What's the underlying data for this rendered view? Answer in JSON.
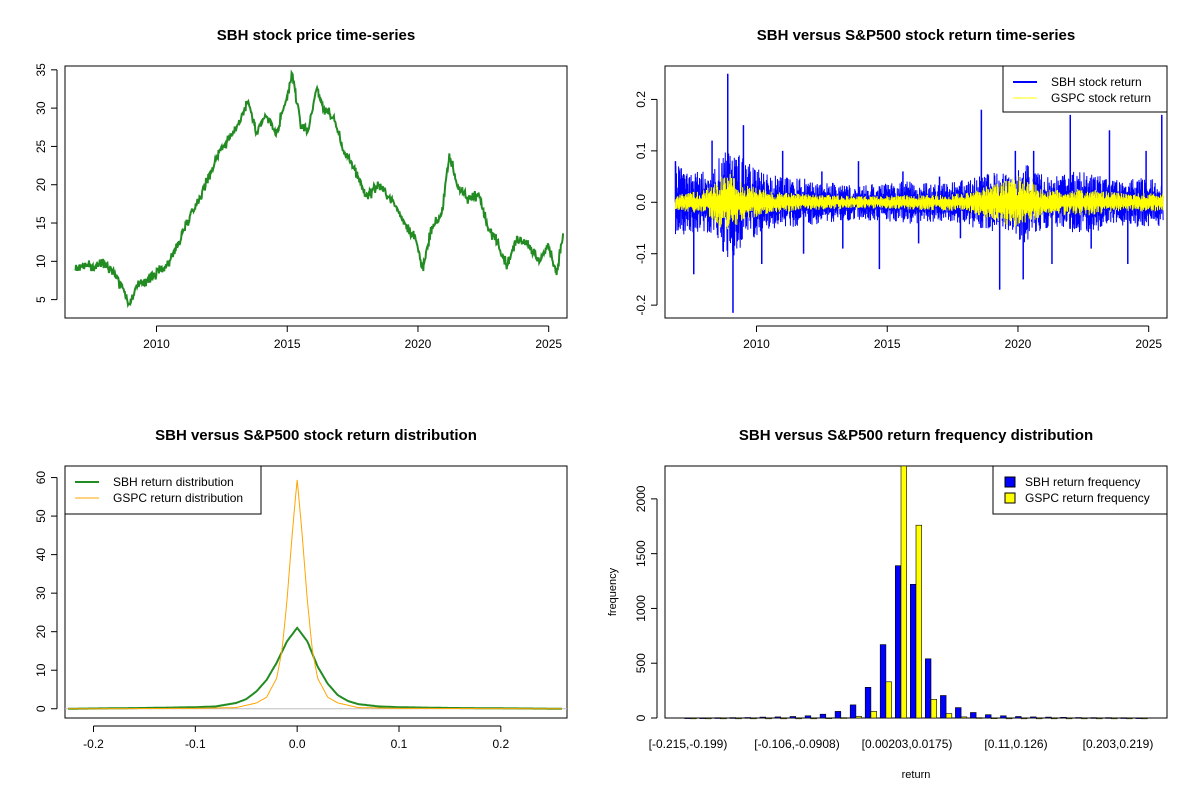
{
  "chart_data": [
    {
      "id": "price",
      "type": "line",
      "title": "SBH stock price time-series",
      "xlabel": "",
      "ylabel": "",
      "xlim": [
        2006.5,
        2025.7
      ],
      "ylim": [
        2.6,
        35.5
      ],
      "x_ticks": [
        2010,
        2015,
        2020,
        2025
      ],
      "y_ticks": [
        5,
        10,
        15,
        20,
        25,
        30,
        35
      ],
      "color": "#228B22",
      "series": [
        {
          "name": "SBH price",
          "x": [
            2006.9,
            2007.2,
            2007.6,
            2008.0,
            2008.4,
            2008.8,
            2008.95,
            2009.2,
            2009.6,
            2010.0,
            2010.4,
            2010.8,
            2011.2,
            2011.6,
            2012.0,
            2012.4,
            2012.8,
            2013.2,
            2013.5,
            2013.8,
            2014.2,
            2014.6,
            2015.0,
            2015.2,
            2015.5,
            2015.8,
            2016.1,
            2016.4,
            2016.8,
            2017.2,
            2017.6,
            2018.0,
            2018.5,
            2019.0,
            2019.5,
            2019.9,
            2020.2,
            2020.5,
            2020.9,
            2021.2,
            2021.5,
            2021.9,
            2022.3,
            2022.7,
            2023.0,
            2023.4,
            2023.8,
            2024.2,
            2024.6,
            2025.0,
            2025.3,
            2025.55
          ],
          "y": [
            9.0,
            9.5,
            9.2,
            10.0,
            8.5,
            6.0,
            4.2,
            6.5,
            7.5,
            8.5,
            9.5,
            12.0,
            15.5,
            18.0,
            21.0,
            24.5,
            26.0,
            28.5,
            31.0,
            27.0,
            29.0,
            26.5,
            31.5,
            34.5,
            28.0,
            27.0,
            32.5,
            30.0,
            28.5,
            24.0,
            22.0,
            18.5,
            20.0,
            18.0,
            15.0,
            13.0,
            9.0,
            14.0,
            16.0,
            24.0,
            20.0,
            18.0,
            19.0,
            14.0,
            13.0,
            9.5,
            13.0,
            12.5,
            10.0,
            12.0,
            8.5,
            13.5
          ]
        }
      ]
    },
    {
      "id": "returns",
      "type": "line",
      "title": "SBH versus S&P500 stock return time-series",
      "xlabel": "",
      "ylabel": "",
      "xlim": [
        2006.5,
        2025.7
      ],
      "ylim": [
        -0.225,
        0.265
      ],
      "x_ticks": [
        2010,
        2015,
        2020,
        2025
      ],
      "y_ticks": [
        -0.2,
        -0.1,
        0.0,
        0.1,
        0.2
      ],
      "y_tick_labels": [
        "-0.2",
        "-0.1",
        "0.0",
        "0.1",
        "0.2"
      ],
      "legend_position": "top-right",
      "series": [
        {
          "name": "SBH stock return",
          "color": "#0000FF",
          "x": [
            2006.9,
            2007.6,
            2008.3,
            2008.9,
            2009.1,
            2009.5,
            2010.2,
            2011.0,
            2011.8,
            2012.5,
            2013.3,
            2013.9,
            2014.7,
            2015.6,
            2016.2,
            2017.0,
            2017.8,
            2018.6,
            2019.3,
            2019.9,
            2020.2,
            2020.6,
            2021.3,
            2022.0,
            2022.8,
            2023.5,
            2024.2,
            2024.9,
            2025.5
          ],
          "y": [
            0.08,
            -0.14,
            0.12,
            0.25,
            -0.215,
            0.15,
            -0.12,
            0.1,
            -0.1,
            0.06,
            -0.09,
            0.08,
            -0.13,
            0.06,
            -0.08,
            0.05,
            -0.07,
            0.18,
            -0.17,
            0.1,
            -0.15,
            0.1,
            -0.12,
            0.17,
            -0.09,
            0.14,
            -0.12,
            0.1,
            0.17
          ],
          "amplitude": [
            0.06,
            0.05,
            0.05,
            0.1,
            0.1,
            0.07,
            0.05,
            0.04,
            0.04,
            0.035,
            0.03,
            0.03,
            0.03,
            0.035,
            0.035,
            0.03,
            0.035,
            0.045,
            0.05,
            0.05,
            0.07,
            0.05,
            0.04,
            0.05,
            0.05,
            0.04,
            0.04,
            0.04,
            0.04
          ]
        },
        {
          "name": "GSPC stock return",
          "color": "#FFFF00",
          "x": [
            2006.9,
            2008.0,
            2008.9,
            2009.5,
            2010.5,
            2012.0,
            2014.0,
            2016.0,
            2018.0,
            2020.2,
            2021.0,
            2022.5,
            2024.0,
            2025.5
          ],
          "amplitude": [
            0.012,
            0.02,
            0.05,
            0.03,
            0.018,
            0.013,
            0.01,
            0.012,
            0.015,
            0.045,
            0.02,
            0.022,
            0.015,
            0.015
          ]
        }
      ]
    },
    {
      "id": "density",
      "type": "line",
      "title": "SBH versus S&P500 stock return distribution",
      "xlabel": "",
      "ylabel": "",
      "xlim": [
        -0.228,
        0.265
      ],
      "ylim": [
        -2.4,
        63
      ],
      "x_ticks": [
        -0.2,
        -0.1,
        0.0,
        0.1,
        0.2
      ],
      "x_tick_labels": [
        "-0.2",
        "-0.1",
        "0.0",
        "0.1",
        "0.2"
      ],
      "y_ticks": [
        0,
        10,
        20,
        30,
        40,
        50,
        60
      ],
      "legend_position": "top-left",
      "series": [
        {
          "name": "SBH return distribution",
          "color": "#228B22",
          "x": [
            -0.225,
            -0.15,
            -0.1,
            -0.08,
            -0.06,
            -0.05,
            -0.04,
            -0.03,
            -0.02,
            -0.01,
            0.0,
            0.01,
            0.02,
            0.03,
            0.04,
            0.05,
            0.06,
            0.08,
            0.1,
            0.15,
            0.26
          ],
          "y": [
            0,
            0.2,
            0.4,
            0.6,
            1.5,
            2.5,
            4.5,
            7.5,
            12,
            17.5,
            21,
            17.5,
            11,
            6.5,
            3.5,
            2,
            1.2,
            0.6,
            0.4,
            0.2,
            0
          ]
        },
        {
          "name": "GSPC return distribution",
          "color": "#FFA500",
          "x": [
            -0.225,
            -0.1,
            -0.06,
            -0.04,
            -0.03,
            -0.02,
            -0.015,
            -0.01,
            -0.005,
            0.0,
            0.005,
            0.01,
            0.015,
            0.02,
            0.03,
            0.04,
            0.06,
            0.1,
            0.26
          ],
          "y": [
            0,
            0.1,
            0.3,
            1.5,
            3,
            8,
            15,
            28,
            45,
            59.5,
            45,
            28,
            15,
            8,
            3,
            1.5,
            0.3,
            0.1,
            0
          ]
        }
      ]
    },
    {
      "id": "histogram",
      "type": "bar",
      "title": "SBH versus S&P500 return frequency distribution",
      "xlabel": "return",
      "ylabel": "frequency",
      "ylim": [
        0,
        2300
      ],
      "y_ticks": [
        0,
        500,
        1000,
        1500,
        2000
      ],
      "category_labels": [
        "[-0.215,-0.199)",
        "[-0.106,-0.0908)",
        "[0.00203,0.0175)",
        "[0.11,0.126)",
        "[0.203,0.219)"
      ],
      "legend_position": "top-right",
      "series": [
        {
          "name": "SBH return frequency",
          "color": "#0000FF",
          "values": [
            2,
            2,
            3,
            4,
            5,
            8,
            10,
            14,
            20,
            35,
            60,
            120,
            280,
            670,
            1390,
            1220,
            540,
            205,
            95,
            50,
            30,
            20,
            14,
            10,
            8,
            6,
            5,
            4,
            4,
            3,
            2
          ]
        },
        {
          "name": "GSPC return frequency",
          "color": "#FFFF00",
          "values": [
            0,
            0,
            0,
            0,
            0,
            0,
            0,
            0,
            0,
            1,
            3,
            15,
            60,
            330,
            2300,
            1760,
            170,
            40,
            10,
            3,
            1,
            0,
            0,
            0,
            0,
            0,
            0,
            0,
            0,
            0,
            0
          ]
        }
      ]
    }
  ]
}
